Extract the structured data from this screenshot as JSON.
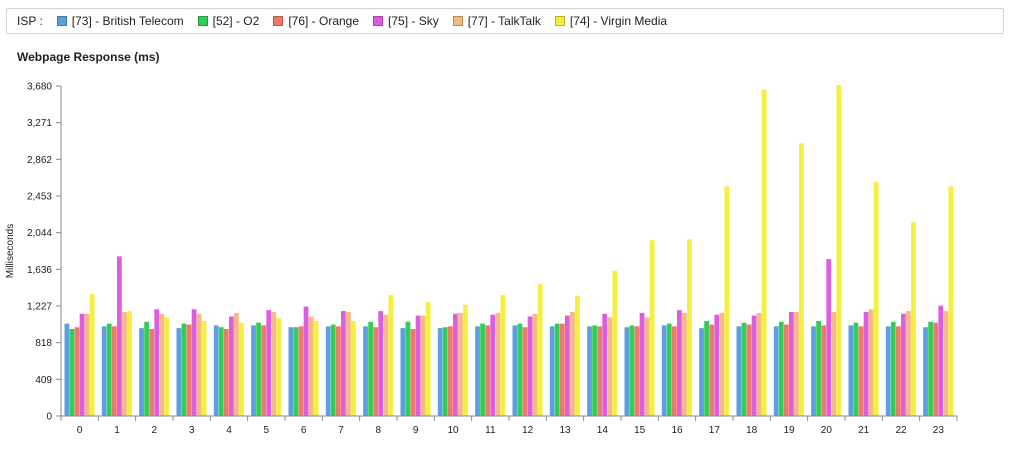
{
  "legend": {
    "title": "ISP :",
    "items": [
      {
        "label": "[73] - British Telecom",
        "color": "#5aa0dc"
      },
      {
        "label": "[52] - O2",
        "color": "#33cc55"
      },
      {
        "label": "[76] - Orange",
        "color": "#f07868"
      },
      {
        "label": "[75] - Sky",
        "color": "#dd5ce0"
      },
      {
        "label": "[77] - TalkTalk",
        "color": "#f4bb80"
      },
      {
        "label": "[74] - Virgin Media",
        "color": "#f5ee40"
      }
    ]
  },
  "chart_data": {
    "type": "bar",
    "title": "Webpage Response (ms)",
    "ylabel": "Milliseconds",
    "xlabel": "",
    "ylim": [
      0,
      3680
    ],
    "yticks": [
      "0",
      "409",
      "818",
      "1,227",
      "1,636",
      "2,044",
      "2,453",
      "2,862",
      "3,271",
      "3,680"
    ],
    "categories": [
      "0",
      "1",
      "2",
      "3",
      "4",
      "5",
      "6",
      "7",
      "8",
      "9",
      "10",
      "11",
      "12",
      "13",
      "14",
      "15",
      "16",
      "17",
      "18",
      "19",
      "20",
      "21",
      "22",
      "23"
    ],
    "series": [
      {
        "name": "[73] - British Telecom",
        "color": "#5aa0dc",
        "values": [
          1030,
          1000,
          980,
          980,
          1010,
          1010,
          990,
          1000,
          1000,
          980,
          980,
          1000,
          1010,
          1000,
          1000,
          990,
          1010,
          980,
          1000,
          1000,
          1000,
          1010,
          1000,
          990
        ]
      },
      {
        "name": "[52] - O2",
        "color": "#33cc55",
        "values": [
          970,
          1030,
          1050,
          1030,
          990,
          1040,
          990,
          1020,
          1050,
          1050,
          990,
          1030,
          1030,
          1030,
          1010,
          1010,
          1030,
          1060,
          1040,
          1050,
          1060,
          1040,
          1050,
          1050
        ]
      },
      {
        "name": "[76] - Orange",
        "color": "#f07868",
        "values": [
          990,
          1000,
          970,
          1020,
          970,
          1010,
          1000,
          1000,
          990,
          970,
          1000,
          1010,
          990,
          1030,
          1000,
          1000,
          1000,
          1020,
          1020,
          1020,
          1010,
          1000,
          1000,
          1040
        ]
      },
      {
        "name": "[75] - Sky",
        "color": "#dd5ce0",
        "values": [
          1140,
          1780,
          1190,
          1190,
          1110,
          1180,
          1220,
          1170,
          1170,
          1120,
          1140,
          1130,
          1110,
          1120,
          1140,
          1150,
          1180,
          1130,
          1120,
          1160,
          1750,
          1160,
          1140,
          1230
        ]
      },
      {
        "name": "[77] - TalkTalk",
        "color": "#f4bb80",
        "values": [
          1140,
          1160,
          1140,
          1140,
          1150,
          1160,
          1110,
          1160,
          1130,
          1120,
          1150,
          1150,
          1140,
          1160,
          1100,
          1100,
          1150,
          1150,
          1150,
          1160,
          1160,
          1190,
          1170,
          1170
        ]
      },
      {
        "name": "[74] - Virgin Media",
        "color": "#f5ee40",
        "values": [
          1360,
          1170,
          1100,
          1060,
          1040,
          1090,
          1060,
          1060,
          1350,
          1270,
          1240,
          1350,
          1470,
          1340,
          1620,
          1960,
          1970,
          2560,
          3640,
          3040,
          3690,
          2610,
          2160,
          2560
        ]
      }
    ]
  }
}
